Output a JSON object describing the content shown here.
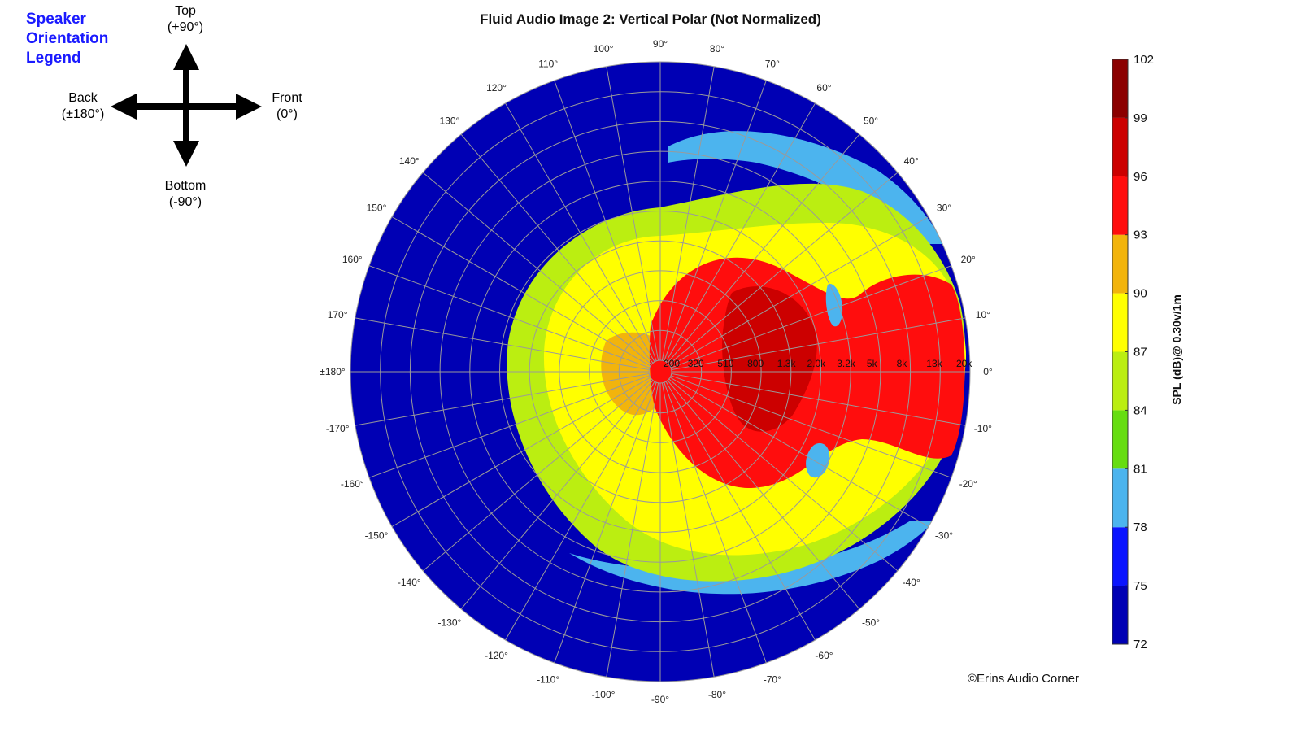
{
  "chart_data": {
    "type": "polar_contour",
    "title": "Fluid Audio Image 2: Vertical Polar (Not Normalized)",
    "angle_ticks": [
      {
        "deg": 0,
        "label": "0°"
      },
      {
        "deg": 10,
        "label": "10°"
      },
      {
        "deg": 20,
        "label": "20°"
      },
      {
        "deg": 30,
        "label": "30°"
      },
      {
        "deg": 40,
        "label": "40°"
      },
      {
        "deg": 50,
        "label": "50°"
      },
      {
        "deg": 60,
        "label": "60°"
      },
      {
        "deg": 70,
        "label": "70°"
      },
      {
        "deg": 80,
        "label": "80°"
      },
      {
        "deg": 90,
        "label": "90°"
      },
      {
        "deg": 100,
        "label": "100°"
      },
      {
        "deg": 110,
        "label": "110°"
      },
      {
        "deg": 120,
        "label": "120°"
      },
      {
        "deg": 130,
        "label": "130°"
      },
      {
        "deg": 140,
        "label": "140°"
      },
      {
        "deg": 150,
        "label": "150°"
      },
      {
        "deg": 160,
        "label": "160°"
      },
      {
        "deg": 170,
        "label": "170°"
      },
      {
        "deg": 180,
        "label": "±180°"
      },
      {
        "deg": -170,
        "label": "-170°"
      },
      {
        "deg": -160,
        "label": "-160°"
      },
      {
        "deg": -150,
        "label": "-150°"
      },
      {
        "deg": -140,
        "label": "-140°"
      },
      {
        "deg": -130,
        "label": "-130°"
      },
      {
        "deg": -120,
        "label": "-120°"
      },
      {
        "deg": -110,
        "label": "-110°"
      },
      {
        "deg": -100,
        "label": "-100°"
      },
      {
        "deg": -90,
        "label": "-90°"
      },
      {
        "deg": -80,
        "label": "-80°"
      },
      {
        "deg": -70,
        "label": "-70°"
      },
      {
        "deg": -60,
        "label": "-60°"
      },
      {
        "deg": -50,
        "label": "-50°"
      },
      {
        "deg": -40,
        "label": "-40°"
      },
      {
        "deg": -30,
        "label": "-30°"
      },
      {
        "deg": -20,
        "label": "-20°"
      },
      {
        "deg": -10,
        "label": "-10°"
      }
    ],
    "frequency_labels": [
      "200",
      "320",
      "510",
      "800",
      "1.3k",
      "2.0k",
      "3.2k",
      "5k",
      "8k",
      "13k",
      "20k"
    ],
    "colorbar": {
      "label": "SPL (dB)@ 0.30v/1m",
      "min": 72,
      "max": 102,
      "ticks": [
        "102",
        "99",
        "96",
        "93",
        "90",
        "87",
        "84",
        "81",
        "78",
        "75",
        "72"
      ],
      "colors_low_to_high": [
        "#0000b4",
        "#0a14ff",
        "#4cb4ee",
        "#66dd11",
        "#bbee11",
        "#ffff00",
        "#f2b40c",
        "#ff0d0d",
        "#cc0000",
        "#8b0000"
      ]
    },
    "region_levels": {
      "outer_background_db": 73,
      "rear_lobe_db": 86,
      "front_lobe_db": 89,
      "on_axis_peak_db": 95,
      "dark_spot_db": 98,
      "notch_spot_db": 79
    }
  },
  "orientation_legend": {
    "title_lines": [
      "Speaker",
      "Orientation",
      "Legend"
    ],
    "top": [
      "Top",
      "(+90°)"
    ],
    "front": [
      "Front",
      "(0°)"
    ],
    "back": [
      "Back",
      "(±180°)"
    ],
    "bottom": [
      "Bottom",
      "(-90°)"
    ],
    "title_color": "#1a1aff"
  },
  "copyright": "©Erins Audio Corner"
}
